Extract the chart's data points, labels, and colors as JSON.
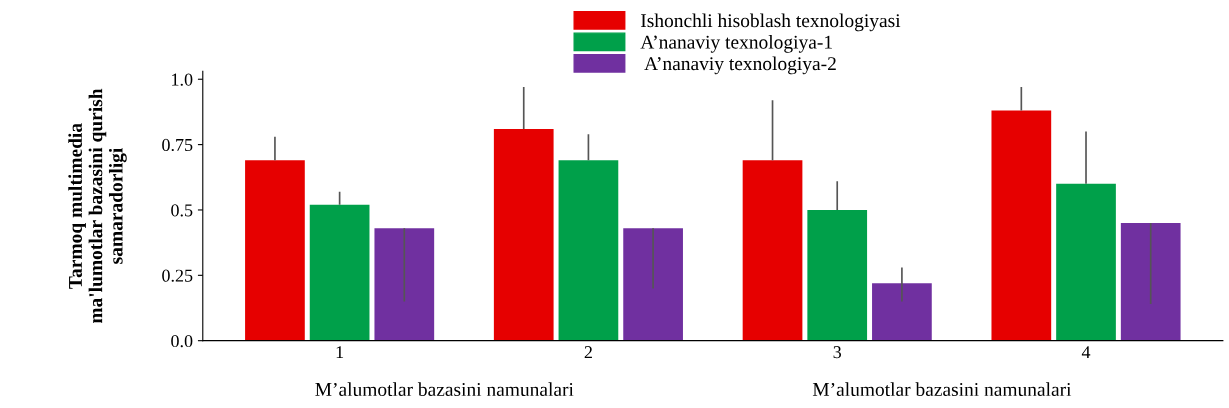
{
  "chart_data": {
    "type": "bar",
    "categories": [
      "1",
      "2",
      "3",
      "4"
    ],
    "ylabel": "Tarmoq multimedia\nma'lumotlar bazasini qurish\nsamaradorligi",
    "annotations": [
      "M’alumotlar bazasini namunalari",
      "M’alumotlar bazasini namunalari"
    ],
    "series": [
      {
        "name": "Ishonchli hisoblash texnologiyasi",
        "color": "#e60000",
        "values": [
          0.69,
          0.81,
          0.69,
          0.88
        ],
        "errors": [
          [
            0.69,
            0.78
          ],
          [
            0.81,
            0.97
          ],
          [
            0.69,
            0.92
          ],
          [
            0.88,
            0.97
          ]
        ]
      },
      {
        "name": "A’nanaviy texnologiya-1",
        "color": "#00a04a",
        "values": [
          0.52,
          0.69,
          0.5,
          0.6
        ],
        "errors": [
          [
            0.52,
            0.57
          ],
          [
            0.69,
            0.79
          ],
          [
            0.5,
            0.61
          ],
          [
            0.6,
            0.8
          ]
        ]
      },
      {
        "name": " A’nanaviy texnologiya-2",
        "color": "#7030a0",
        "values": [
          0.43,
          0.43,
          0.22,
          0.45
        ],
        "errors": [
          [
            0.15,
            0.43
          ],
          [
            0.2,
            0.43
          ],
          [
            0.15,
            0.28
          ],
          [
            0.14,
            0.45
          ]
        ]
      }
    ],
    "ylim": [
      0,
      1.03
    ],
    "yticks": [
      {
        "value": 0,
        "label": "0.0"
      },
      {
        "value": 0.25,
        "label": "0.25"
      },
      {
        "value": 0.5,
        "label": "0.5"
      },
      {
        "value": 0.75,
        "label": "0.75"
      },
      {
        "value": 1.0,
        "label": "1.0"
      }
    ],
    "grid": false,
    "legend": "top"
  }
}
